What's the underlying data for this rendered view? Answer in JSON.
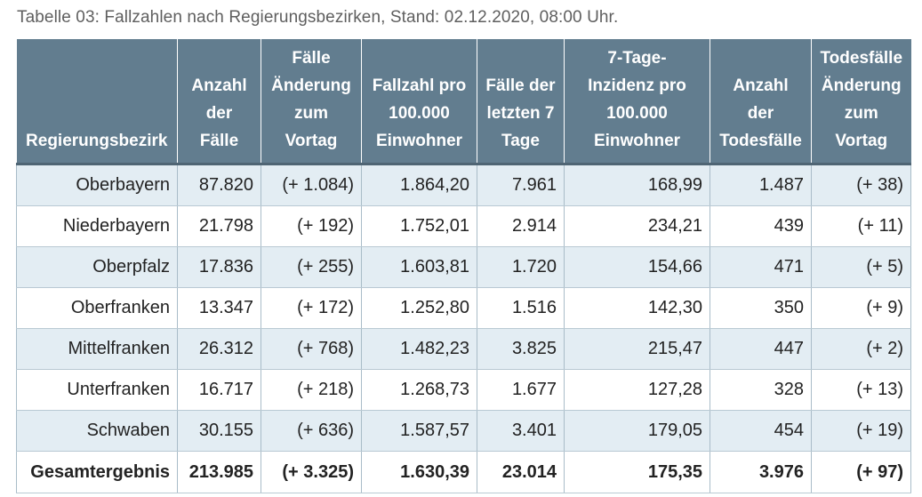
{
  "caption": "Tabelle 03: Fallzahlen nach Regierungsbezirken, Stand: 02.12.2020, 08:00 Uhr.",
  "headers": [
    [
      "Regierungsbezirk"
    ],
    [
      "Anzahl",
      "der",
      "Fälle"
    ],
    [
      "Fälle",
      "Änderung",
      "zum",
      "Vortag"
    ],
    [
      "Fallzahl pro",
      "100.000",
      "Einwohner"
    ],
    [
      "Fälle der",
      "letzten 7",
      "Tage"
    ],
    [
      "7-Tage-",
      "Inzidenz pro",
      "100.000",
      "Einwohner"
    ],
    [
      "Anzahl",
      "der",
      "Todesfälle"
    ],
    [
      "Todesfälle",
      "Änderung",
      "zum",
      "Vortag"
    ]
  ],
  "rows": [
    [
      "Oberbayern",
      "87.820",
      "(+ 1.084)",
      "1.864,20",
      "7.961",
      "168,99",
      "1.487",
      "(+ 38)"
    ],
    [
      "Niederbayern",
      "21.798",
      "(+ 192)",
      "1.752,01",
      "2.914",
      "234,21",
      "439",
      "(+ 11)"
    ],
    [
      "Oberpfalz",
      "17.836",
      "(+ 255)",
      "1.603,81",
      "1.720",
      "154,66",
      "471",
      "(+ 5)"
    ],
    [
      "Oberfranken",
      "13.347",
      "(+ 172)",
      "1.252,80",
      "1.516",
      "142,30",
      "350",
      "(+ 9)"
    ],
    [
      "Mittelfranken",
      "26.312",
      "(+ 768)",
      "1.482,23",
      "3.825",
      "215,47",
      "447",
      "(+ 2)"
    ],
    [
      "Unterfranken",
      "16.717",
      "(+ 218)",
      "1.268,73",
      "1.677",
      "127,28",
      "328",
      "(+ 13)"
    ],
    [
      "Schwaben",
      "30.155",
      "(+ 636)",
      "1.587,57",
      "3.401",
      "179,05",
      "454",
      "(+ 19)"
    ]
  ],
  "total": [
    "Gesamtergebnis",
    "213.985",
    "(+ 3.325)",
    "1.630,39",
    "23.014",
    "175,35",
    "3.976",
    "(+ 97)"
  ]
}
